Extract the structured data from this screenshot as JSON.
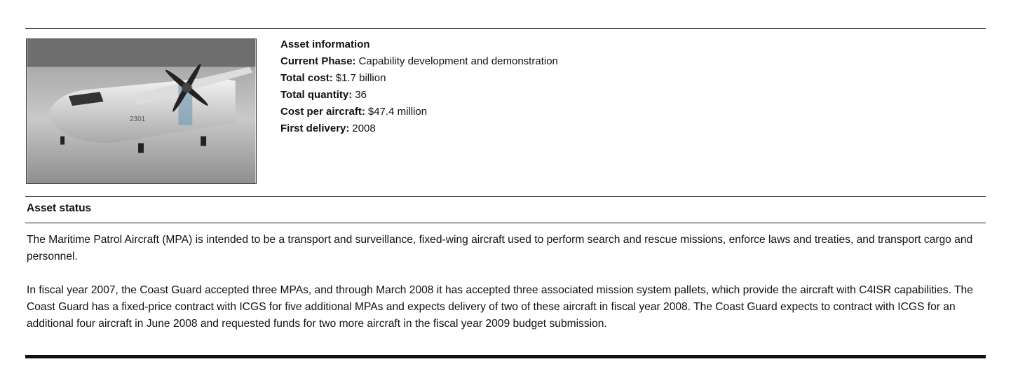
{
  "asset_info": {
    "title": "Asset information",
    "fields": [
      {
        "label": "Current Phase:",
        "value": "Capability development and demonstration"
      },
      {
        "label": "Total cost:",
        "value": "$1.7 billion"
      },
      {
        "label": "Total quantity:",
        "value": "36"
      },
      {
        "label": "Cost per aircraft:",
        "value": "$47.4 million"
      },
      {
        "label": "First delivery:",
        "value": "2008"
      }
    ]
  },
  "asset_status": {
    "title": "Asset status",
    "paragraphs": [
      "The Maritime Patrol Aircraft (MPA) is intended to be a transport and surveillance, fixed-wing aircraft used to perform search and rescue missions, enforce laws and treaties, and transport cargo and personnel.",
      "In fiscal year 2007, the Coast Guard accepted three MPAs, and through March 2008 it has accepted three associated mission system pallets, which provide the aircraft with C4ISR capabilities. The Coast Guard has a fixed-price contract with ICGS for five additional MPAs and expects delivery of two of these aircraft in fiscal year 2008. The Coast Guard expects to contract with ICGS for an additional four aircraft in June 2008 and requested funds for two more aircraft in the fiscal year 2009 budget submission."
    ]
  }
}
